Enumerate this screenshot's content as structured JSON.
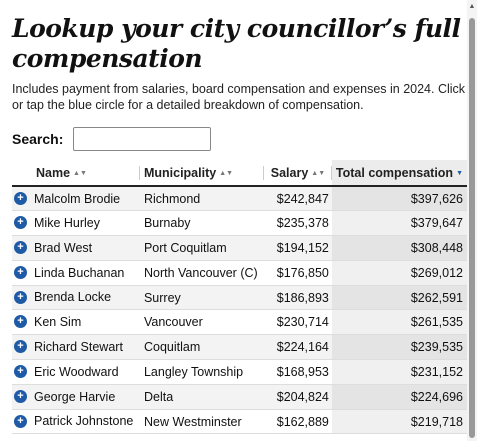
{
  "title": "Lookup your city councillor’s full compensation",
  "subtitle": "Includes payment from salaries, board compensation and expenses in 2024. Click or tap the blue circle for a detailed breakdown of compensation.",
  "search": {
    "label": "Search:",
    "value": "",
    "placeholder": ""
  },
  "accent_color": "#1f5aa6",
  "table": {
    "columns": [
      "Name",
      "Municipality",
      "Salary",
      "Total compensation"
    ],
    "sort": {
      "column": "Total compensation",
      "direction": "descending"
    },
    "rows": [
      {
        "name": "Malcolm Brodie",
        "municipality": "Richmond",
        "salary": "$242,847",
        "total": "$397,626"
      },
      {
        "name": "Mike Hurley",
        "municipality": "Burnaby",
        "salary": "$235,378",
        "total": "$379,647"
      },
      {
        "name": "Brad West",
        "municipality": "Port Coquitlam",
        "salary": "$194,152",
        "total": "$308,448"
      },
      {
        "name": "Linda Buchanan",
        "municipality": "North Vancouver (C)",
        "salary": "$176,850",
        "total": "$269,012"
      },
      {
        "name": "Brenda Locke",
        "municipality": "Surrey",
        "salary": "$186,893",
        "total": "$262,591"
      },
      {
        "name": "Ken Sim",
        "municipality": "Vancouver",
        "salary": "$230,714",
        "total": "$261,535"
      },
      {
        "name": "Richard Stewart",
        "municipality": "Coquitlam",
        "salary": "$224,164",
        "total": "$239,535"
      },
      {
        "name": "Eric Woodward",
        "municipality": "Langley Township",
        "salary": "$168,953",
        "total": "$231,152"
      },
      {
        "name": "George Harvie",
        "municipality": "Delta",
        "salary": "$204,824",
        "total": "$224,696"
      },
      {
        "name": "Patrick Johnstone",
        "municipality": "New Westminster",
        "salary": "$162,889",
        "total": "$219,718"
      }
    ]
  }
}
